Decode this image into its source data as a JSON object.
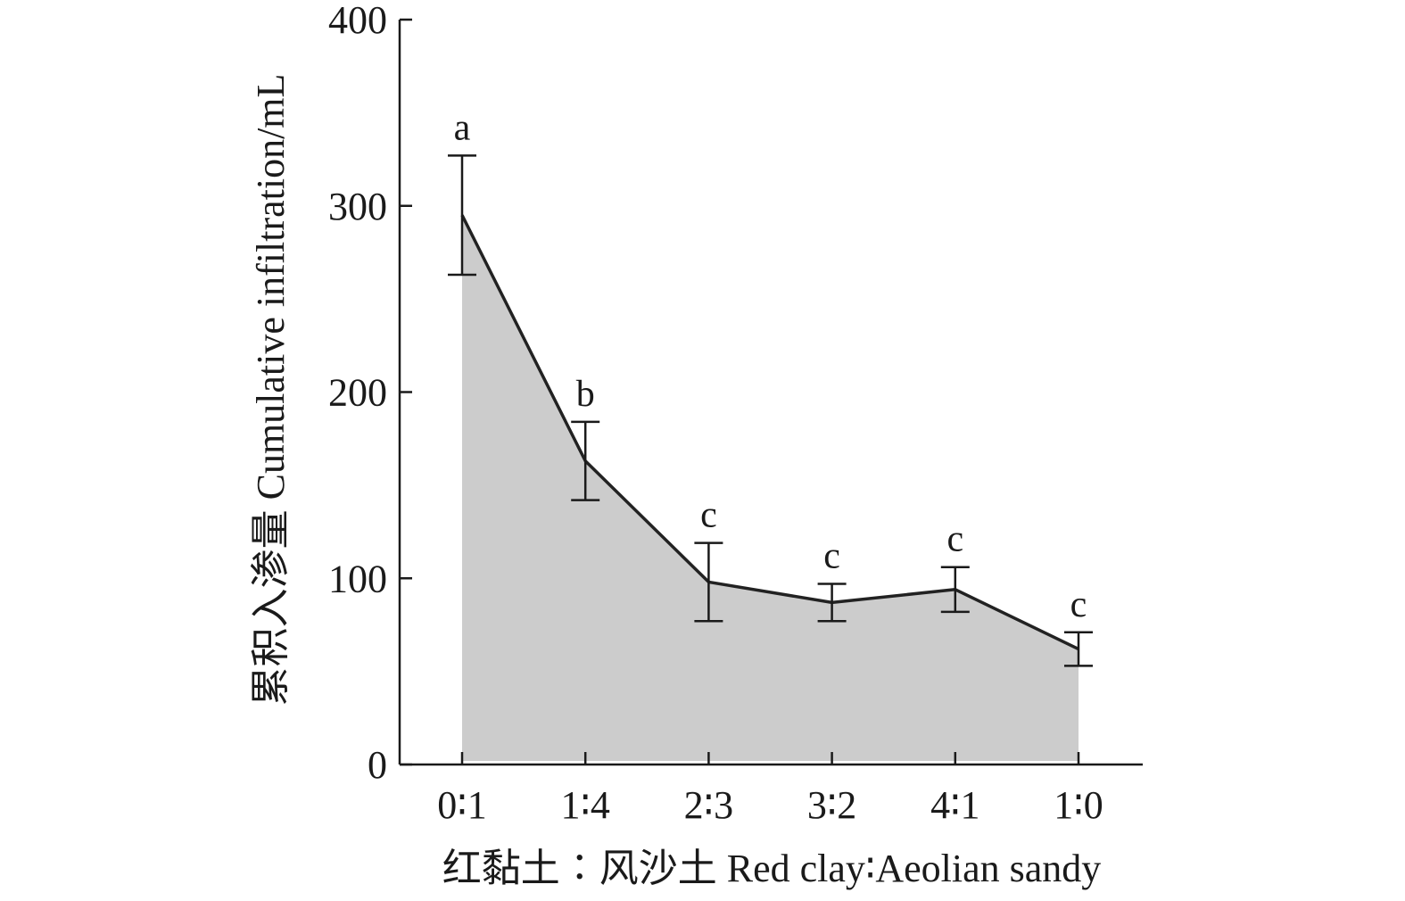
{
  "chart_data": {
    "type": "area",
    "title": "",
    "xlabel": "红黏土∶风沙土 Red clay∶Aeolian sandy",
    "ylabel": "累积入渗量 Cumulative infiltration/mL",
    "categories": [
      "0∶1",
      "1∶4",
      "2∶3",
      "3∶2",
      "4∶1",
      "1∶0"
    ],
    "values": [
      295,
      163,
      98,
      87,
      94,
      62
    ],
    "error": [
      32,
      21,
      21,
      10,
      12,
      9
    ],
    "significance": [
      "a",
      "b",
      "c",
      "c",
      "c",
      "c"
    ],
    "ylim": [
      0,
      400
    ],
    "yticks": [
      0,
      100,
      200,
      300,
      400
    ],
    "grid": false,
    "legend": "none",
    "colors": {
      "fill": "#cccccc",
      "line": "#222222",
      "axis": "#1a1a1a"
    }
  }
}
